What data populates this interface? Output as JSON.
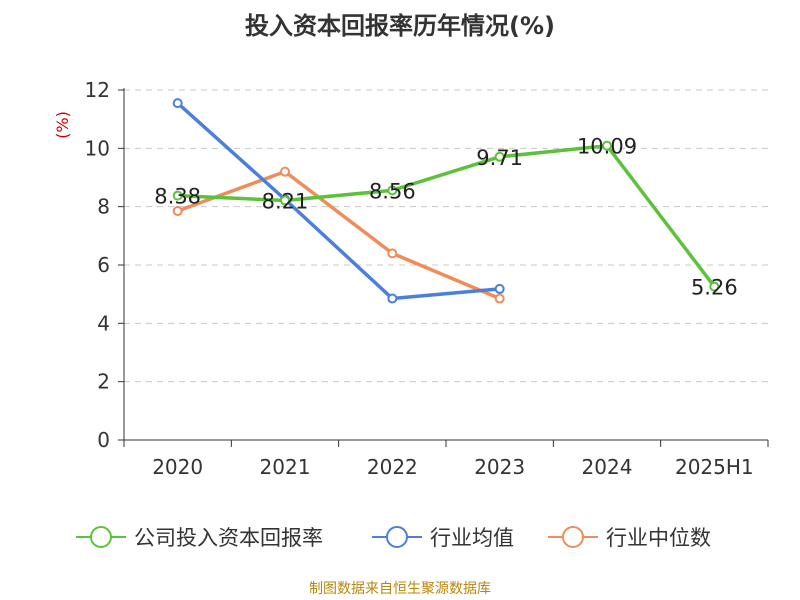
{
  "chart_data": {
    "type": "line",
    "title": "投入资本回报率历年情况(%)",
    "ylabel": "(%)",
    "categories": [
      "2020",
      "2021",
      "2022",
      "2023",
      "2024",
      "2025H1"
    ],
    "ylim": [
      0,
      12
    ],
    "yticks": [
      "0",
      "2",
      "4",
      "6",
      "8",
      "10",
      "12"
    ],
    "grid": true,
    "legend_position": "bottom",
    "series": [
      {
        "name": "公司投入资本回报率",
        "color": "#5cc23b",
        "values": [
          8.38,
          8.21,
          8.56,
          9.71,
          10.09,
          5.26
        ],
        "labels": [
          "8.38",
          "8.21",
          "8.56",
          "9.71",
          "10.09",
          "5.26"
        ]
      },
      {
        "name": "行业均值",
        "color": "#4a7fdb",
        "values": [
          11.55,
          8.25,
          4.85,
          5.18,
          null,
          null
        ]
      },
      {
        "name": "行业中位数",
        "color": "#f08c5a",
        "values": [
          7.85,
          9.2,
          6.4,
          4.85,
          null,
          null
        ]
      }
    ]
  },
  "source_note": "制图数据来自恒生聚源数据库"
}
